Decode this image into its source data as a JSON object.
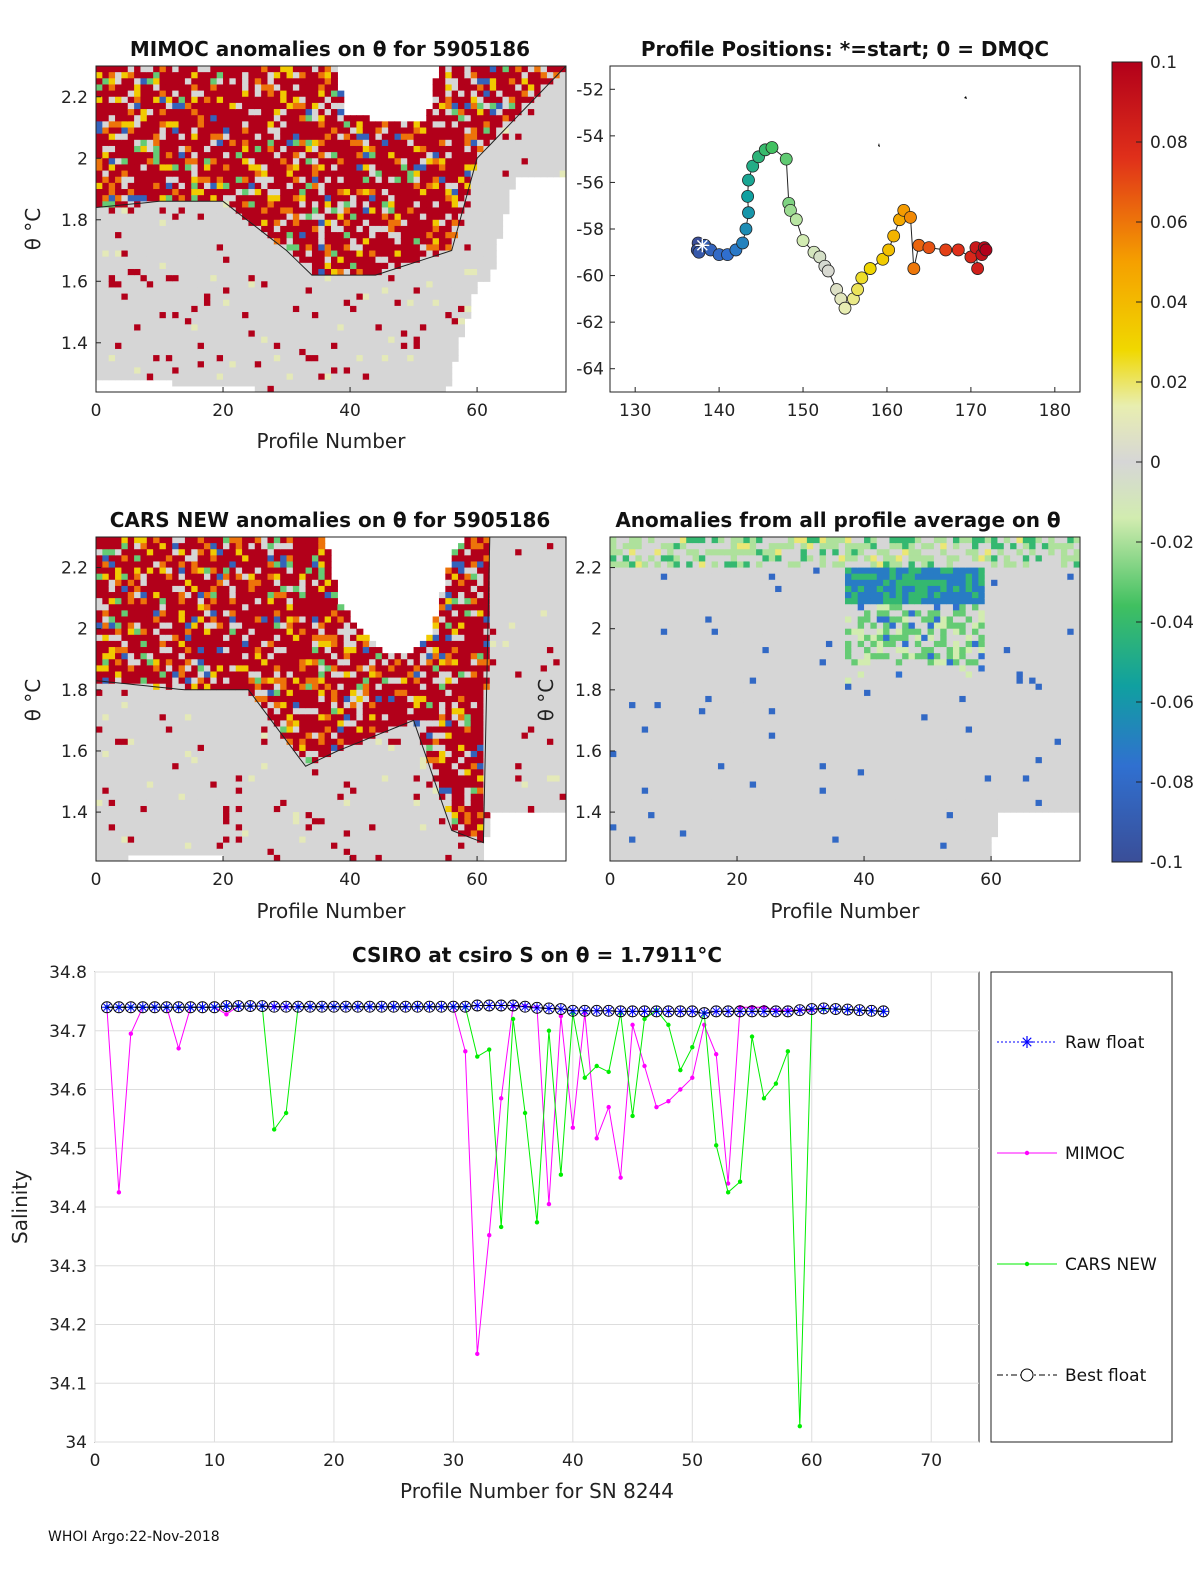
{
  "footer": "WHOI Argo:22-Nov-2018",
  "colors": {
    "raw": "#0000ff",
    "mimoc": "#ff00ff",
    "cars": "#00ee00",
    "best": "#000000",
    "grid": "#dddddd",
    "heat_red": "#c0001a",
    "heat_gray": "#d8d8d8"
  },
  "chart_data": [
    {
      "id": "mimoc",
      "type": "heatmap",
      "title": "MIMOC anomalies on θ  for 5905186",
      "xlabel": "Profile Number",
      "ylabel": "θ °C",
      "xlim": [
        0,
        74
      ],
      "ylim": [
        1.24,
        2.3
      ],
      "xticks": [
        "0",
        "20",
        "40",
        "60"
      ],
      "yticks": [
        "1.4",
        "1.6",
        "1.8",
        "2",
        "2.2"
      ],
      "seed": 7,
      "envelope": [
        [
          0,
          2.3
        ],
        [
          10,
          2.3
        ],
        [
          32,
          2.3
        ],
        [
          38,
          2.3
        ],
        [
          39,
          2.15
        ],
        [
          45,
          2.12
        ],
        [
          52,
          2.12
        ],
        [
          54,
          2.3
        ],
        [
          74,
          2.3
        ]
      ],
      "floor": [
        [
          0,
          1.29
        ],
        [
          12,
          1.27
        ],
        [
          25,
          1.25
        ],
        [
          40,
          1.24
        ],
        [
          55,
          1.24
        ],
        [
          56,
          1.3
        ],
        [
          60,
          1.6
        ],
        [
          62,
          1.6
        ],
        [
          66,
          1.95
        ],
        [
          74,
          1.95
        ]
      ],
      "red_band": [
        [
          0,
          1.84
        ],
        [
          10,
          1.86
        ],
        [
          20,
          1.86
        ],
        [
          30,
          1.7
        ],
        [
          34,
          1.62
        ],
        [
          44,
          1.62
        ],
        [
          56,
          1.7
        ],
        [
          60,
          2.0
        ],
        [
          74,
          2.3
        ]
      ]
    },
    {
      "id": "positions",
      "type": "scatter",
      "title": "Profile Positions: *=start; 0 = DMQC",
      "xlim": [
        127,
        183
      ],
      "ylim": [
        -65,
        -51
      ],
      "xticks": [
        "130",
        "140",
        "150",
        "160",
        "170",
        "180"
      ],
      "yticks": [
        "-52",
        "-54",
        "-56",
        "-58",
        "-60",
        "-62",
        "-64"
      ],
      "points": [
        [
          137.5,
          -58.6
        ],
        [
          137.4,
          -58.9
        ],
        [
          137.6,
          -59.0
        ],
        [
          138.3,
          -58.7
        ],
        [
          139.0,
          -58.9
        ],
        [
          140.0,
          -59.1
        ],
        [
          141.0,
          -59.1
        ],
        [
          142.0,
          -58.9
        ],
        [
          142.8,
          -58.6
        ],
        [
          143.2,
          -58.0
        ],
        [
          143.5,
          -57.3
        ],
        [
          143.4,
          -56.6
        ],
        [
          143.5,
          -55.9
        ],
        [
          144.0,
          -55.3
        ],
        [
          144.7,
          -54.9
        ],
        [
          145.5,
          -54.6
        ],
        [
          146.3,
          -54.5
        ],
        [
          148.0,
          -55.0
        ],
        [
          148.3,
          -56.9
        ],
        [
          148.5,
          -57.2
        ],
        [
          149.2,
          -57.6
        ],
        [
          150.0,
          -58.5
        ],
        [
          151.3,
          -59.0
        ],
        [
          152.0,
          -59.2
        ],
        [
          152.6,
          -59.6
        ],
        [
          153.0,
          -59.8
        ],
        [
          154.0,
          -60.6
        ],
        [
          154.5,
          -61.0
        ],
        [
          155.0,
          -61.4
        ],
        [
          156.0,
          -61.0
        ],
        [
          156.5,
          -60.6
        ],
        [
          157.0,
          -60.1
        ],
        [
          158.0,
          -59.7
        ],
        [
          159.5,
          -59.3
        ],
        [
          160.2,
          -58.9
        ],
        [
          160.8,
          -58.3
        ],
        [
          161.5,
          -57.6
        ],
        [
          162.0,
          -57.2
        ],
        [
          162.8,
          -57.5
        ],
        [
          163.2,
          -59.7
        ],
        [
          163.8,
          -58.7
        ],
        [
          165.0,
          -58.8
        ],
        [
          167.0,
          -58.9
        ],
        [
          168.5,
          -58.9
        ],
        [
          170.0,
          -59.2
        ],
        [
          170.8,
          -59.7
        ],
        [
          170.6,
          -58.8
        ],
        [
          171.3,
          -59.1
        ],
        [
          171.6,
          -58.8
        ],
        [
          171.8,
          -58.9
        ]
      ],
      "start": [
        138.0,
        -58.7
      ]
    },
    {
      "id": "cars",
      "type": "heatmap",
      "title": "CARS NEW anomalies on θ for 5905186",
      "xlabel": "Profile Number",
      "ylabel": "θ °C",
      "xlim": [
        0,
        74
      ],
      "ylim": [
        1.24,
        2.3
      ],
      "xticks": [
        "0",
        "20",
        "40",
        "60"
      ],
      "yticks": [
        "1.4",
        "1.6",
        "1.8",
        "2",
        "2.2"
      ],
      "seed": 13,
      "envelope": [
        [
          0,
          2.3
        ],
        [
          36,
          2.3
        ],
        [
          38,
          2.1
        ],
        [
          42,
          1.98
        ],
        [
          46,
          1.92
        ],
        [
          50,
          1.92
        ],
        [
          53,
          2.0
        ],
        [
          56,
          2.25
        ],
        [
          58,
          2.3
        ],
        [
          74,
          2.3
        ]
      ],
      "floor": [
        [
          0,
          1.24
        ],
        [
          10,
          1.26
        ],
        [
          20,
          1.25
        ],
        [
          40,
          1.24
        ],
        [
          60,
          1.24
        ],
        [
          61,
          1.25
        ],
        [
          62,
          1.4
        ],
        [
          74,
          1.4
        ]
      ],
      "red_band": [
        [
          0,
          1.83
        ],
        [
          14,
          1.8
        ],
        [
          24,
          1.8
        ],
        [
          33,
          1.55
        ],
        [
          38,
          1.6
        ],
        [
          50,
          1.7
        ],
        [
          56,
          1.34
        ],
        [
          61,
          1.3
        ],
        [
          62,
          2.3
        ],
        [
          74,
          2.3
        ]
      ]
    },
    {
      "id": "allavg",
      "type": "heatmap",
      "title": "Anomalies from all profile average on θ",
      "xlabel": "Profile Number",
      "ylabel": "θ °C",
      "xlim": [
        0,
        74
      ],
      "ylim": [
        1.24,
        2.3
      ],
      "xticks": [
        "0",
        "20",
        "40",
        "60"
      ],
      "yticks": [
        "1.4",
        "1.6",
        "1.8",
        "2",
        "2.2"
      ],
      "seed": 21,
      "envelope": [
        [
          0,
          2.3
        ],
        [
          74,
          2.3
        ]
      ],
      "floor": [
        [
          0,
          1.24
        ],
        [
          60,
          1.24
        ],
        [
          61,
          1.4
        ],
        [
          74,
          1.4
        ]
      ],
      "blue_box": [
        37,
        59,
        1.82,
        2.2
      ]
    },
    {
      "id": "colorbar",
      "type": "colorbar",
      "ticks": [
        "0.1",
        "0.08",
        "0.06",
        "0.04",
        "0.02",
        "0",
        "-0.02",
        "-0.04",
        "-0.06",
        "-0.08",
        "-0.1"
      ],
      "range": [
        -0.1,
        0.1
      ]
    },
    {
      "id": "salinity",
      "type": "line",
      "title": "CSIRO at csiro S on θ = 1.7911°C",
      "xlabel": "Profile Number for SN 8244",
      "ylabel": "Salinity",
      "xlim": [
        0,
        74
      ],
      "ylim": [
        34,
        34.8
      ],
      "xticks": [
        "0",
        "10",
        "20",
        "30",
        "40",
        "50",
        "60",
        "70"
      ],
      "yticks": [
        "34",
        "34.1",
        "34.2",
        "34.3",
        "34.4",
        "34.5",
        "34.6",
        "34.7",
        "34.8"
      ],
      "x": [
        1,
        2,
        3,
        4,
        5,
        6,
        7,
        8,
        9,
        10,
        11,
        12,
        13,
        14,
        15,
        16,
        17,
        18,
        19,
        20,
        21,
        22,
        23,
        24,
        25,
        26,
        27,
        28,
        29,
        30,
        31,
        32,
        33,
        34,
        35,
        36,
        37,
        38,
        39,
        40,
        41,
        42,
        43,
        44,
        45,
        46,
        47,
        48,
        49,
        50,
        51,
        52,
        53,
        54,
        55,
        56,
        57,
        58,
        59,
        60,
        61,
        62,
        63,
        64,
        65,
        66
      ],
      "series": [
        {
          "name": "Raw float",
          "values": [
            34.74,
            34.74,
            34.74,
            34.74,
            34.74,
            34.74,
            34.74,
            34.74,
            34.74,
            34.74,
            34.742,
            34.742,
            34.742,
            34.742,
            34.741,
            34.741,
            34.741,
            34.741,
            34.741,
            34.741,
            34.741,
            34.741,
            34.741,
            34.741,
            34.741,
            34.741,
            34.741,
            34.741,
            34.741,
            34.741,
            34.741,
            34.743,
            34.743,
            34.743,
            34.743,
            34.741,
            34.739,
            34.738,
            34.737,
            34.734,
            34.734,
            34.734,
            34.734,
            34.733,
            34.733,
            34.733,
            34.733,
            34.733,
            34.733,
            34.733,
            34.73,
            34.733,
            34.733,
            34.733,
            34.733,
            34.733,
            34.733,
            34.733,
            34.735,
            34.737,
            34.738,
            34.737,
            34.736,
            34.735,
            34.734,
            34.733
          ]
        },
        {
          "name": "MIMOC",
          "values": [
            34.74,
            34.425,
            34.695,
            34.74,
            34.74,
            34.74,
            34.67,
            34.74,
            34.74,
            34.74,
            34.728,
            34.742,
            34.742,
            34.742,
            34.741,
            34.741,
            34.741,
            34.741,
            34.741,
            34.741,
            34.741,
            34.741,
            34.741,
            34.741,
            34.741,
            34.741,
            34.741,
            34.741,
            34.741,
            34.741,
            34.665,
            34.15,
            34.352,
            34.585,
            34.742,
            34.742,
            34.74,
            34.405,
            34.725,
            34.535,
            34.73,
            34.517,
            34.57,
            34.45,
            34.71,
            34.64,
            34.57,
            34.58,
            34.6,
            34.62,
            34.71,
            34.66,
            34.44,
            34.74,
            34.74,
            34.74,
            34.735,
            34.735,
            34.735,
            34.735,
            34.738,
            34.737,
            34.736,
            34.735,
            34.734,
            34.733
          ]
        },
        {
          "name": "CARS NEW",
          "values": [
            34.74,
            34.74,
            34.74,
            34.74,
            34.74,
            34.74,
            34.74,
            34.74,
            34.74,
            34.74,
            34.742,
            34.742,
            34.742,
            34.742,
            34.532,
            34.56,
            34.741,
            34.741,
            34.741,
            34.741,
            34.741,
            34.741,
            34.741,
            34.741,
            34.741,
            34.741,
            34.741,
            34.741,
            34.741,
            34.741,
            34.741,
            34.656,
            34.668,
            34.366,
            34.72,
            34.56,
            34.374,
            34.7,
            34.455,
            34.73,
            34.62,
            34.64,
            34.63,
            34.73,
            34.555,
            34.72,
            34.735,
            34.71,
            34.633,
            34.672,
            34.73,
            34.505,
            34.425,
            34.443,
            34.69,
            34.585,
            34.61,
            34.665,
            34.027,
            34.737,
            34.737,
            34.737,
            34.736,
            34.735,
            34.734,
            34.733
          ]
        },
        {
          "name": "Best float",
          "values": [
            34.74,
            34.74,
            34.74,
            34.74,
            34.74,
            34.74,
            34.74,
            34.74,
            34.74,
            34.74,
            34.742,
            34.742,
            34.742,
            34.742,
            34.741,
            34.741,
            34.741,
            34.741,
            34.741,
            34.741,
            34.741,
            34.741,
            34.741,
            34.741,
            34.741,
            34.741,
            34.741,
            34.741,
            34.741,
            34.741,
            34.741,
            34.743,
            34.743,
            34.743,
            34.743,
            34.741,
            34.739,
            34.738,
            34.737,
            34.734,
            34.734,
            34.734,
            34.734,
            34.733,
            34.733,
            34.733,
            34.733,
            34.733,
            34.733,
            34.733,
            34.73,
            34.733,
            34.733,
            34.733,
            34.733,
            34.733,
            34.733,
            34.733,
            34.735,
            34.737,
            34.738,
            34.737,
            34.736,
            34.735,
            34.734,
            34.733
          ]
        }
      ],
      "legend": [
        "Raw float",
        "MIMOC",
        "CARS NEW",
        "Best float"
      ],
      "legend_position": "outside-right"
    }
  ]
}
